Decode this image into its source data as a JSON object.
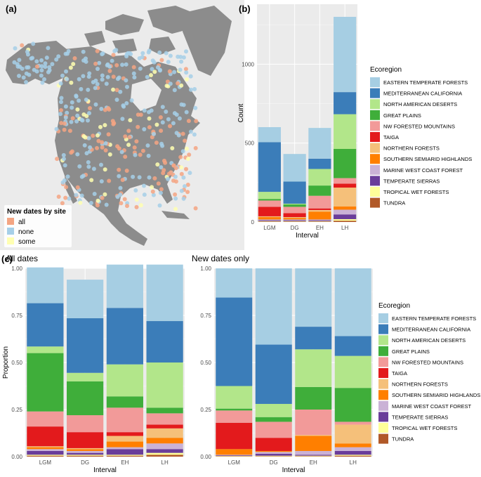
{
  "panel_labels": {
    "a": "(a)",
    "b": "(b)",
    "c": "(c)"
  },
  "colors": {
    "EASTERN TEMPERATE FORESTS": "#a6cee3",
    "MEDITERRANEAN CALIFORNIA": "#3b7db9",
    "NORTH AMERICAN DESERTS": "#b2e68a",
    "GREAT PLAINS": "#3fae3a",
    "NW FORESTED MOUNTAINS": "#f29a99",
    "TAIGA": "#e31a1c",
    "NORTHERN FORESTS": "#f5c07a",
    "SOUTHERN SEMIARID HIGHLANDS": "#ff7f00",
    "MARINE WEST COAST FOREST": "#cab2d6",
    "TEMPERATE SIERRAS": "#6a3d9a",
    "TROPICAL WET FORESTS": "#ffff99",
    "TUNDRA": "#b15928"
  },
  "map": {
    "legend_title": "New dates by site",
    "legend_items": [
      {
        "label": "all",
        "color": "#f4a582"
      },
      {
        "label": "none",
        "color": "#a6cfe8"
      },
      {
        "label": "some",
        "color": "#ffffb2"
      }
    ],
    "ocean_color": "#ebebeb",
    "land_color": "#8c8c8c"
  },
  "legend": {
    "title": "Ecoregion",
    "items": [
      "EASTERN TEMPERATE FORESTS",
      "MEDITERRANEAN CALIFORNIA",
      "NORTH AMERICAN DESERTS",
      "GREAT PLAINS",
      "NW FORESTED MOUNTAINS",
      "TAIGA",
      "NORTHERN FORESTS",
      "SOUTHERN SEMIARID HIGHLANDS",
      "MARINE WEST COAST FOREST",
      "TEMPERATE SIERRAS",
      "TROPICAL WET FORESTS",
      "TUNDRA"
    ]
  },
  "chart_data": [
    {
      "id": "b",
      "type": "bar",
      "stacked": true,
      "title": "",
      "xlabel": "Interval",
      "ylabel": "Count",
      "categories": [
        "LGM",
        "DG",
        "EH",
        "LH"
      ],
      "ylim": [
        0,
        1380
      ],
      "yticks": [
        0,
        500,
        1000
      ],
      "series": [
        {
          "name": "TUNDRA",
          "values": [
            3,
            3,
            3,
            8
          ]
        },
        {
          "name": "TROPICAL WET FORESTS",
          "values": [
            3,
            3,
            3,
            10
          ]
        },
        {
          "name": "TEMPERATE SIERRAS",
          "values": [
            5,
            5,
            5,
            30
          ]
        },
        {
          "name": "MARINE WEST COAST FOREST",
          "values": [
            5,
            5,
            5,
            30
          ]
        },
        {
          "name": "SOUTHERN SEMIARID HIGHLANDS",
          "values": [
            15,
            10,
            50,
            20
          ]
        },
        {
          "name": "NORTHERN FORESTS",
          "values": [
            5,
            5,
            10,
            120
          ]
        },
        {
          "name": "TAIGA",
          "values": [
            60,
            25,
            10,
            25
          ]
        },
        {
          "name": "NW FORESTED MOUNTAINS",
          "values": [
            40,
            40,
            80,
            35
          ]
        },
        {
          "name": "GREAT PLAINS",
          "values": [
            10,
            15,
            65,
            185
          ]
        },
        {
          "name": "NORTH AMERICAN DESERTS",
          "values": [
            45,
            5,
            105,
            220
          ]
        },
        {
          "name": "MEDITERRANEAN CALIFORNIA",
          "values": [
            315,
            140,
            65,
            140
          ]
        },
        {
          "name": "EASTERN TEMPERATE FORESTS",
          "values": [
            95,
            175,
            195,
            477
          ]
        }
      ]
    },
    {
      "id": "c1",
      "type": "bar",
      "stacked": true,
      "title": "All dates",
      "xlabel": "Interval",
      "ylabel": "Proportion",
      "categories": [
        "LGM",
        "DG",
        "EH",
        "LH"
      ],
      "ylim": [
        0,
        1.0
      ],
      "yticks": [
        "0.00",
        "0.25",
        "0.50",
        "0.75",
        "1.00"
      ],
      "series": [
        {
          "name": "TUNDRA",
          "values": [
            0.005,
            0.005,
            0.005,
            0.01
          ]
        },
        {
          "name": "TROPICAL WET FORESTS",
          "values": [
            0.005,
            0.005,
            0.005,
            0.01
          ]
        },
        {
          "name": "TEMPERATE SIERRAS",
          "values": [
            0.02,
            0.01,
            0.03,
            0.02
          ]
        },
        {
          "name": "MARINE WEST COAST FOREST",
          "values": [
            0.01,
            0.01,
            0.01,
            0.03
          ]
        },
        {
          "name": "SOUTHERN SEMIARID HIGHLANDS",
          "values": [
            0.01,
            0.01,
            0.03,
            0.03
          ]
        },
        {
          "name": "NORTHERN FORESTS",
          "values": [
            0.005,
            0.005,
            0.03,
            0.05
          ]
        },
        {
          "name": "TAIGA",
          "values": [
            0.105,
            0.085,
            0.02,
            0.02
          ]
        },
        {
          "name": "NW FORESTED MOUNTAINS",
          "values": [
            0.08,
            0.09,
            0.13,
            0.06
          ]
        },
        {
          "name": "GREAT PLAINS",
          "values": [
            0.31,
            0.18,
            0.06,
            0.03
          ]
        },
        {
          "name": "NORTH AMERICAN DESERTS",
          "values": [
            0.035,
            0.045,
            0.17,
            0.24
          ]
        },
        {
          "name": "MEDITERRANEAN CALIFORNIA",
          "values": [
            0.23,
            0.29,
            0.3,
            0.22
          ]
        },
        {
          "name": "EASTERN TEMPERATE FORESTS",
          "values": [
            0.19,
            0.205,
            0.23,
            0.3
          ]
        }
      ]
    },
    {
      "id": "c2",
      "type": "bar",
      "stacked": true,
      "title": "New dates only",
      "xlabel": "Interval",
      "ylabel": "",
      "categories": [
        "LGM",
        "DG",
        "EH",
        "LH"
      ],
      "ylim": [
        0,
        1.0
      ],
      "yticks": [
        "0.00",
        "0.25",
        "0.50",
        "0.75",
        "1.00"
      ],
      "series": [
        {
          "name": "TUNDRA",
          "values": [
            0.002,
            0.002,
            0.002,
            0.005
          ]
        },
        {
          "name": "TROPICAL WET FORESTS",
          "values": [
            0.002,
            0.003,
            0.003,
            0.005
          ]
        },
        {
          "name": "TEMPERATE SIERRAS",
          "values": [
            0.003,
            0.01,
            0.005,
            0.02
          ]
        },
        {
          "name": "MARINE WEST COAST FOREST",
          "values": [
            0.003,
            0.01,
            0.02,
            0.02
          ]
        },
        {
          "name": "SOUTHERN SEMIARID HIGHLANDS",
          "values": [
            0.03,
            0.005,
            0.08,
            0.02
          ]
        },
        {
          "name": "NORTHERN FORESTS",
          "values": [
            0.0,
            0.0,
            0.005,
            0.1
          ]
        },
        {
          "name": "TAIGA",
          "values": [
            0.14,
            0.07,
            0.0,
            0.0
          ]
        },
        {
          "name": "NW FORESTED MOUNTAINS",
          "values": [
            0.065,
            0.085,
            0.135,
            0.015
          ]
        },
        {
          "name": "GREAT PLAINS",
          "values": [
            0.01,
            0.025,
            0.12,
            0.18
          ]
        },
        {
          "name": "NORTH AMERICAN DESERTS",
          "values": [
            0.12,
            0.07,
            0.2,
            0.17
          ]
        },
        {
          "name": "MEDITERRANEAN CALIFORNIA",
          "values": [
            0.47,
            0.315,
            0.12,
            0.105
          ]
        },
        {
          "name": "EASTERN TEMPERATE FORESTS",
          "values": [
            0.155,
            0.405,
            0.31,
            0.36
          ]
        }
      ]
    }
  ]
}
